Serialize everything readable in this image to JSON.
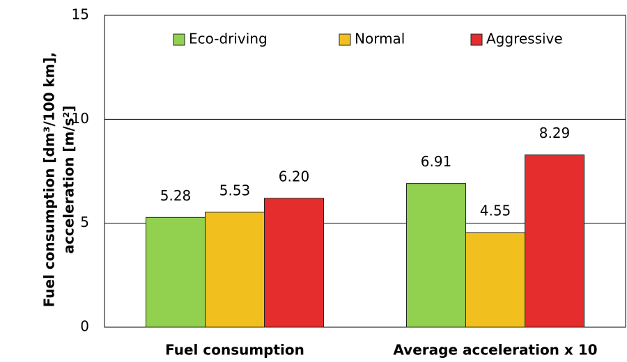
{
  "chart_data": {
    "type": "bar",
    "categories": [
      "Fuel consumption",
      "Average acceleration x 10"
    ],
    "series": [
      {
        "name": "Eco-driving",
        "color": "#92d050",
        "values": [
          5.28,
          6.91
        ],
        "value_labels": [
          "5.28",
          "6.91"
        ]
      },
      {
        "name": "Normal",
        "color": "#f2c01e",
        "values": [
          5.53,
          4.55
        ],
        "value_labels": [
          "5.53",
          "4.55"
        ]
      },
      {
        "name": "Aggressive",
        "color": "#e52d2d",
        "values": [
          6.2,
          8.29
        ],
        "value_labels": [
          "6.20",
          "8.29"
        ]
      }
    ],
    "ylabel": [
      "Fuel consumption [dm³/100 km],",
      "acceleration [m/s²]"
    ],
    "ylim": [
      0,
      15
    ],
    "yticks": [
      0,
      5,
      10,
      15
    ],
    "grid": true,
    "legend": "top"
  }
}
